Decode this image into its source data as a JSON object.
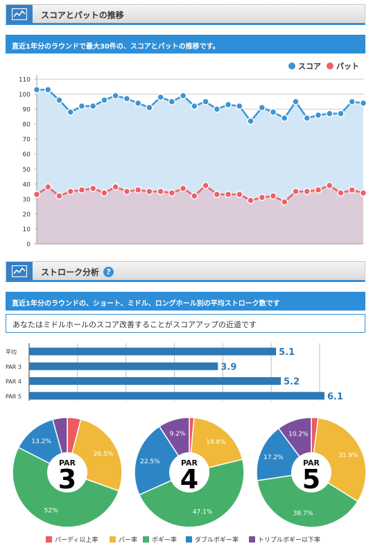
{
  "section1": {
    "title": "スコアとパットの推移",
    "description": "直近1年分のラウンドで最大30件の、スコアとパットの推移です。"
  },
  "section2": {
    "title": "ストローク分析",
    "help_icon": "?",
    "description": "直近1年分のラウンドの、ショート、ミドル、ロングホール別の平均ストローク数です",
    "advice": "あなたはミドルホールのスコア改善することがスコアアップの近道です"
  },
  "colors": {
    "score": "#3c95d1",
    "putt": "#ec6267",
    "score_area": "#d3e6f5",
    "putt_area": "#dccbd8",
    "bar": "#2d79b5",
    "accent": "#3680c6",
    "birdie": "#ec5a62",
    "par": "#f0b93a",
    "bogey": "#46b06a",
    "double": "#2d85c6",
    "triple": "#7c4f9e"
  },
  "chart_data": [
    {
      "type": "line",
      "legend_position": "top-right",
      "grid": true,
      "ylim": [
        0,
        110
      ],
      "y_ticks": [
        "0",
        "10",
        "20",
        "30",
        "40",
        "50",
        "60",
        "70",
        "80",
        "90",
        "100",
        "110"
      ],
      "series": [
        {
          "name": "スコア",
          "values": [
            103,
            103,
            96,
            88,
            92,
            92,
            96,
            99,
            97,
            94,
            91,
            98,
            95,
            99,
            92,
            95,
            90,
            93,
            92,
            82,
            91,
            88,
            84,
            95,
            84,
            86,
            87,
            87,
            95,
            94
          ]
        },
        {
          "name": "パット",
          "values": [
            33,
            38,
            32,
            35,
            36,
            37,
            34,
            38,
            35,
            36,
            35,
            35,
            34,
            37,
            32,
            39,
            33,
            33,
            33,
            29,
            31,
            32,
            28,
            35,
            35,
            36,
            39,
            34,
            36,
            34
          ]
        }
      ]
    },
    {
      "type": "bar",
      "orientation": "horizontal",
      "categories": [
        "平均",
        "PAR 3",
        "PAR 4",
        "PAR 5"
      ],
      "values": [
        5.1,
        3.9,
        5.2,
        6.1
      ],
      "labels": [
        "5.1",
        "3.9",
        "5.2",
        "6.1"
      ],
      "grid": true
    },
    {
      "type": "pie",
      "donut": true,
      "center_top": "PAR",
      "center_number": "3",
      "categories": [
        "パーディ以上率",
        "パー率",
        "ボギー率",
        "ダブルボギー率",
        "トリプルボギー以下率"
      ],
      "values": [
        4.0,
        26.5,
        52.0,
        13.2,
        4.3
      ],
      "labels": [
        "",
        "26.5%",
        "52%",
        "13.2%",
        ""
      ]
    },
    {
      "type": "pie",
      "donut": true,
      "center_top": "PAR",
      "center_number": "4",
      "categories": [
        "パーディ以上率",
        "パー率",
        "ボギー率",
        "ダブルボギー率",
        "トリプルボギー以下率"
      ],
      "values": [
        1.4,
        19.8,
        47.1,
        22.5,
        9.2
      ],
      "labels": [
        "",
        "19.8%",
        "47.1%",
        "22.5%",
        "9.2%"
      ]
    },
    {
      "type": "pie",
      "donut": true,
      "center_top": "PAR",
      "center_number": "5",
      "categories": [
        "パーディ以上率",
        "パー率",
        "ボギー率",
        "ダブルボギー率",
        "トリプルボギー以下率"
      ],
      "values": [
        2.0,
        31.9,
        38.7,
        17.2,
        10.2
      ],
      "labels": [
        "",
        "31.9%",
        "38.7%",
        "17.2%",
        "10.2%"
      ]
    }
  ],
  "pie_legend": [
    "パーディ以上率",
    "パー率",
    "ボギー率",
    "ダブルボギー率",
    "トリプルボギー以下率"
  ]
}
